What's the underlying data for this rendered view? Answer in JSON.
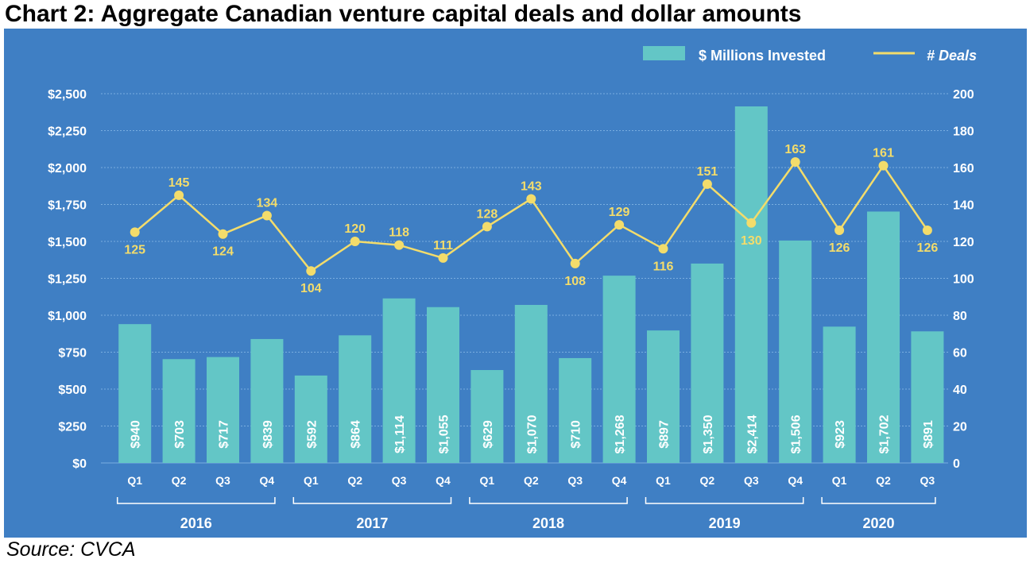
{
  "title": "Chart 2: Aggregate Canadian venture capital deals and dollar amounts",
  "source": "Source: CVCA",
  "colors": {
    "background": "#3f7fc4",
    "bar": "#63c6c6",
    "line": "#f3dc6b",
    "gridline": "#7aaee0",
    "text": "#ffffff"
  },
  "chart_data": {
    "type": "bar+line",
    "legend_position": "top-right",
    "categories": [
      "Q1",
      "Q2",
      "Q3",
      "Q4",
      "Q1",
      "Q2",
      "Q3",
      "Q4",
      "Q1",
      "Q2",
      "Q3",
      "Q4",
      "Q1",
      "Q2",
      "Q3",
      "Q4",
      "Q1",
      "Q2",
      "Q3"
    ],
    "year_groups": [
      {
        "year": "2016",
        "start": 0,
        "end": 3
      },
      {
        "year": "2017",
        "start": 4,
        "end": 7
      },
      {
        "year": "2018",
        "start": 8,
        "end": 11
      },
      {
        "year": "2019",
        "start": 12,
        "end": 15
      },
      {
        "year": "2020",
        "start": 16,
        "end": 18
      }
    ],
    "series": [
      {
        "name": "$ Millions Invested",
        "type": "bar",
        "axis": "left",
        "values": [
          940,
          703,
          717,
          839,
          592,
          864,
          1114,
          1055,
          629,
          1070,
          710,
          1268,
          897,
          1350,
          2414,
          1506,
          923,
          1702,
          891
        ],
        "labels": [
          "$940",
          "$703",
          "$717",
          "$839",
          "$592",
          "$864",
          "$1,114",
          "$1,055",
          "$629",
          "$1,070",
          "$710",
          "$1,268",
          "$897",
          "$1,350",
          "$2,414",
          "$1,506",
          "$923",
          "$1,702",
          "$891"
        ]
      },
      {
        "name": "# Deals",
        "type": "line",
        "axis": "right",
        "values": [
          125,
          145,
          124,
          134,
          104,
          120,
          118,
          111,
          128,
          143,
          108,
          129,
          116,
          151,
          130,
          163,
          126,
          161,
          126
        ],
        "label_side": [
          "below",
          "above",
          "below",
          "above",
          "below",
          "above",
          "above",
          "above",
          "above",
          "above",
          "below",
          "above",
          "below",
          "above",
          "below",
          "above",
          "below",
          "above",
          "below"
        ]
      }
    ],
    "y_left": {
      "range": [
        0,
        2500
      ],
      "ticks": [
        "$0",
        "$250",
        "$500",
        "$750",
        "$1,000",
        "$1,250",
        "$1,500",
        "$1,750",
        "$2,000",
        "$2,250",
        "$2,500"
      ]
    },
    "y_right": {
      "range": [
        0,
        200
      ],
      "ticks": [
        "0",
        "20",
        "40",
        "60",
        "80",
        "100",
        "120",
        "140",
        "160",
        "180",
        "200"
      ]
    },
    "grid": true
  }
}
